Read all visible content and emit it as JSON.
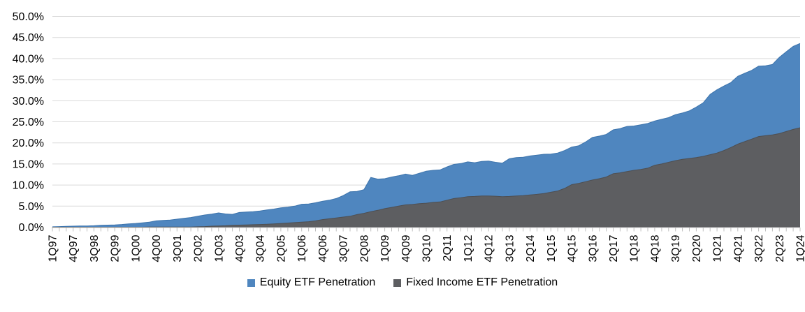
{
  "colors": {
    "equity": "#4F86BF",
    "equity_edge": "#3D74AC",
    "fixed_income": "#5D5E61",
    "fixed_income_edge": "#4E4F52",
    "gridline": "#D9D9D9",
    "axis": "#BFBFBF",
    "text": "#000000"
  },
  "chart_data": {
    "type": "area",
    "stacking": "overlapping",
    "title": "",
    "xlabel": "",
    "ylabel": "",
    "grid": "horizontal",
    "legend_position": "bottom",
    "y_axis": {
      "min": 0,
      "max": 50,
      "step": 5,
      "format": "percent",
      "tick_labels": [
        "50.0%",
        "45.0%",
        "40.0%",
        "35.0%",
        "30.0%",
        "25.0%",
        "20.0%",
        "15.0%",
        "10.0%",
        "5.0%",
        "0.0%"
      ]
    },
    "x_labels": [
      "1Q97",
      "4Q97",
      "3Q98",
      "2Q99",
      "1Q00",
      "4Q00",
      "3Q01",
      "2Q02",
      "1Q03",
      "4Q03",
      "3Q04",
      "2Q05",
      "1Q06",
      "4Q06",
      "3Q07",
      "2Q08",
      "1Q09",
      "4Q09",
      "3Q10",
      "2Q11",
      "1Q12",
      "4Q12",
      "3Q13",
      "2Q14",
      "1Q15",
      "4Q15",
      "3Q16",
      "2Q17",
      "1Q18",
      "4Q18",
      "3Q19",
      "2Q20",
      "1Q21",
      "4Q21",
      "3Q22",
      "2Q23",
      "1Q24"
    ],
    "points_per_label": 3,
    "series": [
      {
        "name": "Equity ETF Penetration",
        "color": "#4F86BF",
        "values": [
          0.1,
          0.15,
          0.2,
          0.25,
          0.3,
          0.3,
          0.35,
          0.45,
          0.5,
          0.55,
          0.65,
          0.8,
          0.9,
          1.05,
          1.2,
          1.5,
          1.6,
          1.7,
          1.9,
          2.1,
          2.3,
          2.6,
          2.9,
          3.1,
          3.4,
          3.15,
          3.05,
          3.5,
          3.6,
          3.7,
          3.85,
          4.1,
          4.3,
          4.6,
          4.75,
          5.0,
          5.45,
          5.5,
          5.8,
          6.15,
          6.4,
          6.8,
          7.5,
          8.4,
          8.5,
          8.9,
          11.8,
          11.4,
          11.5,
          11.9,
          12.2,
          12.6,
          12.3,
          12.8,
          13.3,
          13.5,
          13.6,
          14.3,
          14.9,
          15.1,
          15.5,
          15.3,
          15.6,
          15.7,
          15.4,
          15.2,
          16.25,
          16.5,
          16.6,
          16.9,
          17.1,
          17.3,
          17.35,
          17.6,
          18.2,
          19.0,
          19.3,
          20.2,
          21.3,
          21.6,
          22.0,
          23.1,
          23.4,
          23.9,
          24.0,
          24.3,
          24.6,
          25.2,
          25.6,
          26.0,
          26.7,
          27.1,
          27.6,
          28.5,
          29.5,
          31.5,
          32.6,
          33.5,
          34.3,
          35.8,
          36.5,
          37.2,
          38.2,
          38.3,
          38.6,
          40.3,
          41.6,
          42.9,
          43.6
        ]
      },
      {
        "name": "Fixed Income ETF Penetration",
        "color": "#5D5E61",
        "values": [
          0,
          0,
          0,
          0,
          0,
          0,
          0,
          0,
          0,
          0,
          0,
          0,
          0,
          0,
          0.05,
          0.05,
          0.05,
          0.05,
          0.05,
          0.05,
          0.05,
          0.1,
          0.15,
          0.25,
          0.3,
          0.35,
          0.45,
          0.5,
          0.55,
          0.6,
          0.65,
          0.7,
          0.8,
          0.9,
          1.0,
          1.1,
          1.2,
          1.3,
          1.5,
          1.8,
          2.0,
          2.2,
          2.4,
          2.6,
          3.0,
          3.3,
          3.7,
          4.0,
          4.4,
          4.7,
          5.0,
          5.3,
          5.4,
          5.6,
          5.7,
          5.9,
          6.0,
          6.4,
          6.8,
          7.0,
          7.25,
          7.3,
          7.4,
          7.4,
          7.35,
          7.25,
          7.3,
          7.4,
          7.5,
          7.65,
          7.8,
          8.0,
          8.3,
          8.6,
          9.2,
          10.1,
          10.4,
          10.8,
          11.2,
          11.5,
          11.9,
          12.7,
          12.9,
          13.2,
          13.5,
          13.7,
          14.0,
          14.7,
          15.0,
          15.4,
          15.8,
          16.1,
          16.3,
          16.5,
          16.8,
          17.2,
          17.6,
          18.2,
          18.9,
          19.7,
          20.3,
          20.9,
          21.5,
          21.7,
          21.9,
          22.2,
          22.7,
          23.2,
          23.6
        ]
      }
    ]
  },
  "legend": {
    "items": [
      {
        "label": "Equity ETF Penetration"
      },
      {
        "label": "Fixed Income ETF Penetration"
      }
    ]
  }
}
